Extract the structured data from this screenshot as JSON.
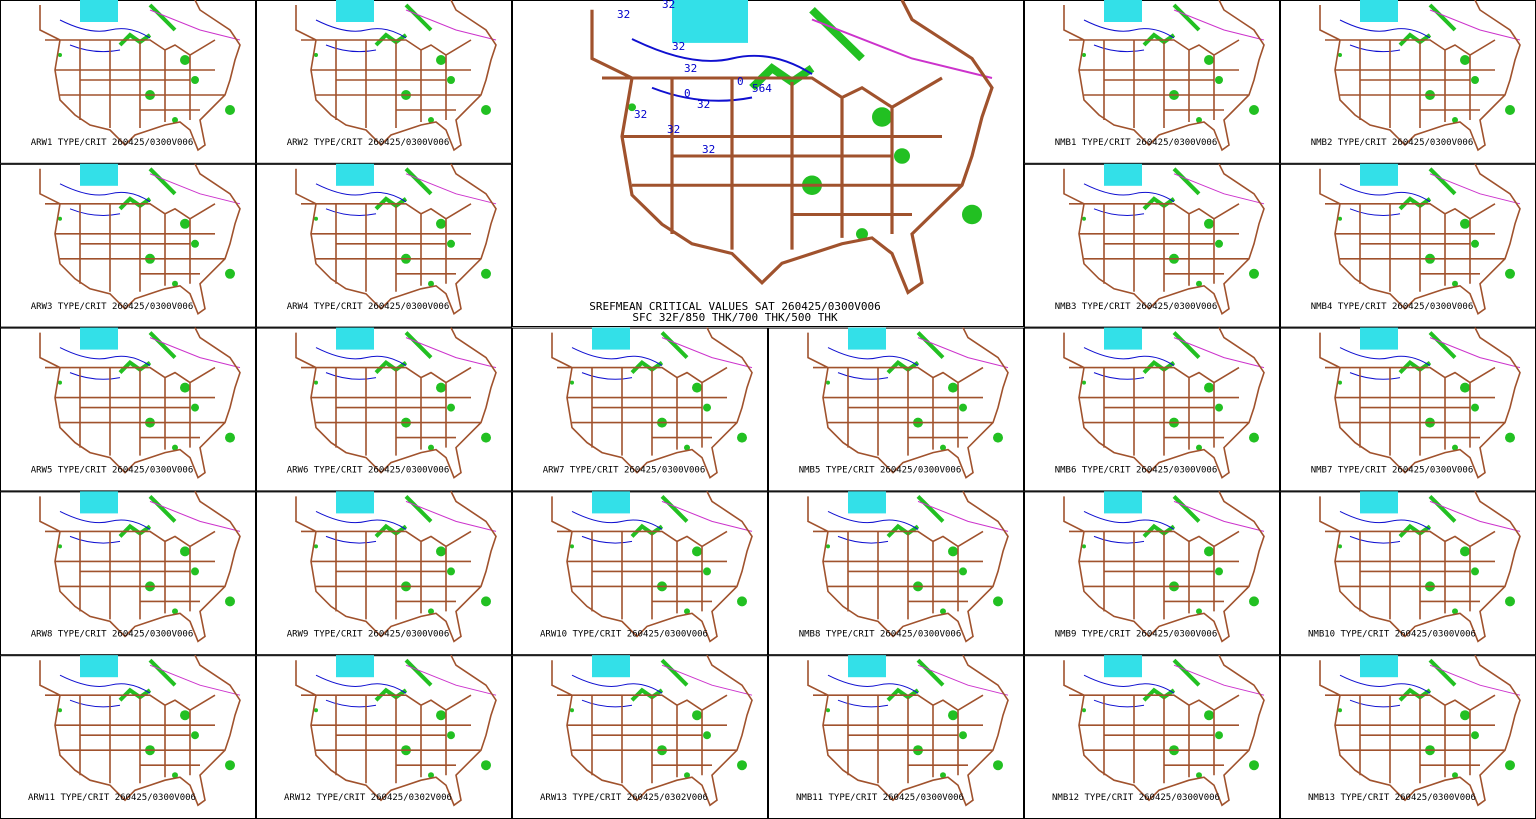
{
  "center": {
    "title": "SREFMEAN CRITICAL VALUES SAT 260425/0300V006",
    "subtitle": "SFC 32F/850 THK/700 THK/500 THK",
    "contour_labels": [
      "32",
      "32",
      "32",
      "32",
      "0",
      "32",
      "564",
      "0",
      "32",
      "32",
      "32"
    ]
  },
  "panels": [
    {
      "label": "ARW1 TYPE/CRIT 260425/0300V006"
    },
    {
      "label": "ARW2 TYPE/CRIT 260425/0300V006"
    },
    {
      "label": "NMB1 TYPE/CRIT 260425/0300V006"
    },
    {
      "label": "NMB2 TYPE/CRIT 260425/0300V006"
    },
    {
      "label": "ARW3 TYPE/CRIT 260425/0300V006"
    },
    {
      "label": "ARW4 TYPE/CRIT 260425/0300V006"
    },
    {
      "label": "NMB3 TYPE/CRIT 260425/0300V006"
    },
    {
      "label": "NMB4 TYPE/CRIT 260425/0300V006"
    },
    {
      "label": "ARW5 TYPE/CRIT 260425/0300V006"
    },
    {
      "label": "ARW6 TYPE/CRIT 260425/0300V006"
    },
    {
      "label": "ARW7 TYPE/CRIT 260425/0300V006"
    },
    {
      "label": "NMB5 TYPE/CRIT 260425/0300V006"
    },
    {
      "label": "NMB6 TYPE/CRIT 260425/0300V006"
    },
    {
      "label": "NMB7 TYPE/CRIT 260425/0300V006"
    },
    {
      "label": "ARW8 TYPE/CRIT 260425/0300V006"
    },
    {
      "label": "ARW9 TYPE/CRIT 260425/0300V006"
    },
    {
      "label": "ARW10 TYPE/CRIT 260425/0300V006"
    },
    {
      "label": "NMB8 TYPE/CRIT 260425/0300V006"
    },
    {
      "label": "NMB9 TYPE/CRIT 260425/0300V006"
    },
    {
      "label": "NMB10 TYPE/CRIT 260425/0300V006"
    },
    {
      "label": "ARW11 TYPE/CRIT 260425/0300V006"
    },
    {
      "label": "ARW12 TYPE/CRIT 260425/0302V006"
    },
    {
      "label": "ARW13 TYPE/CRIT 260425/0302V006"
    },
    {
      "label": "NMB11 TYPE/CRIT 260425/0300V006"
    },
    {
      "label": "NMB12 TYPE/CRIT 260425/0300V006"
    },
    {
      "label": "NMB13 TYPE/CRIT 260425/0300V006"
    }
  ]
}
